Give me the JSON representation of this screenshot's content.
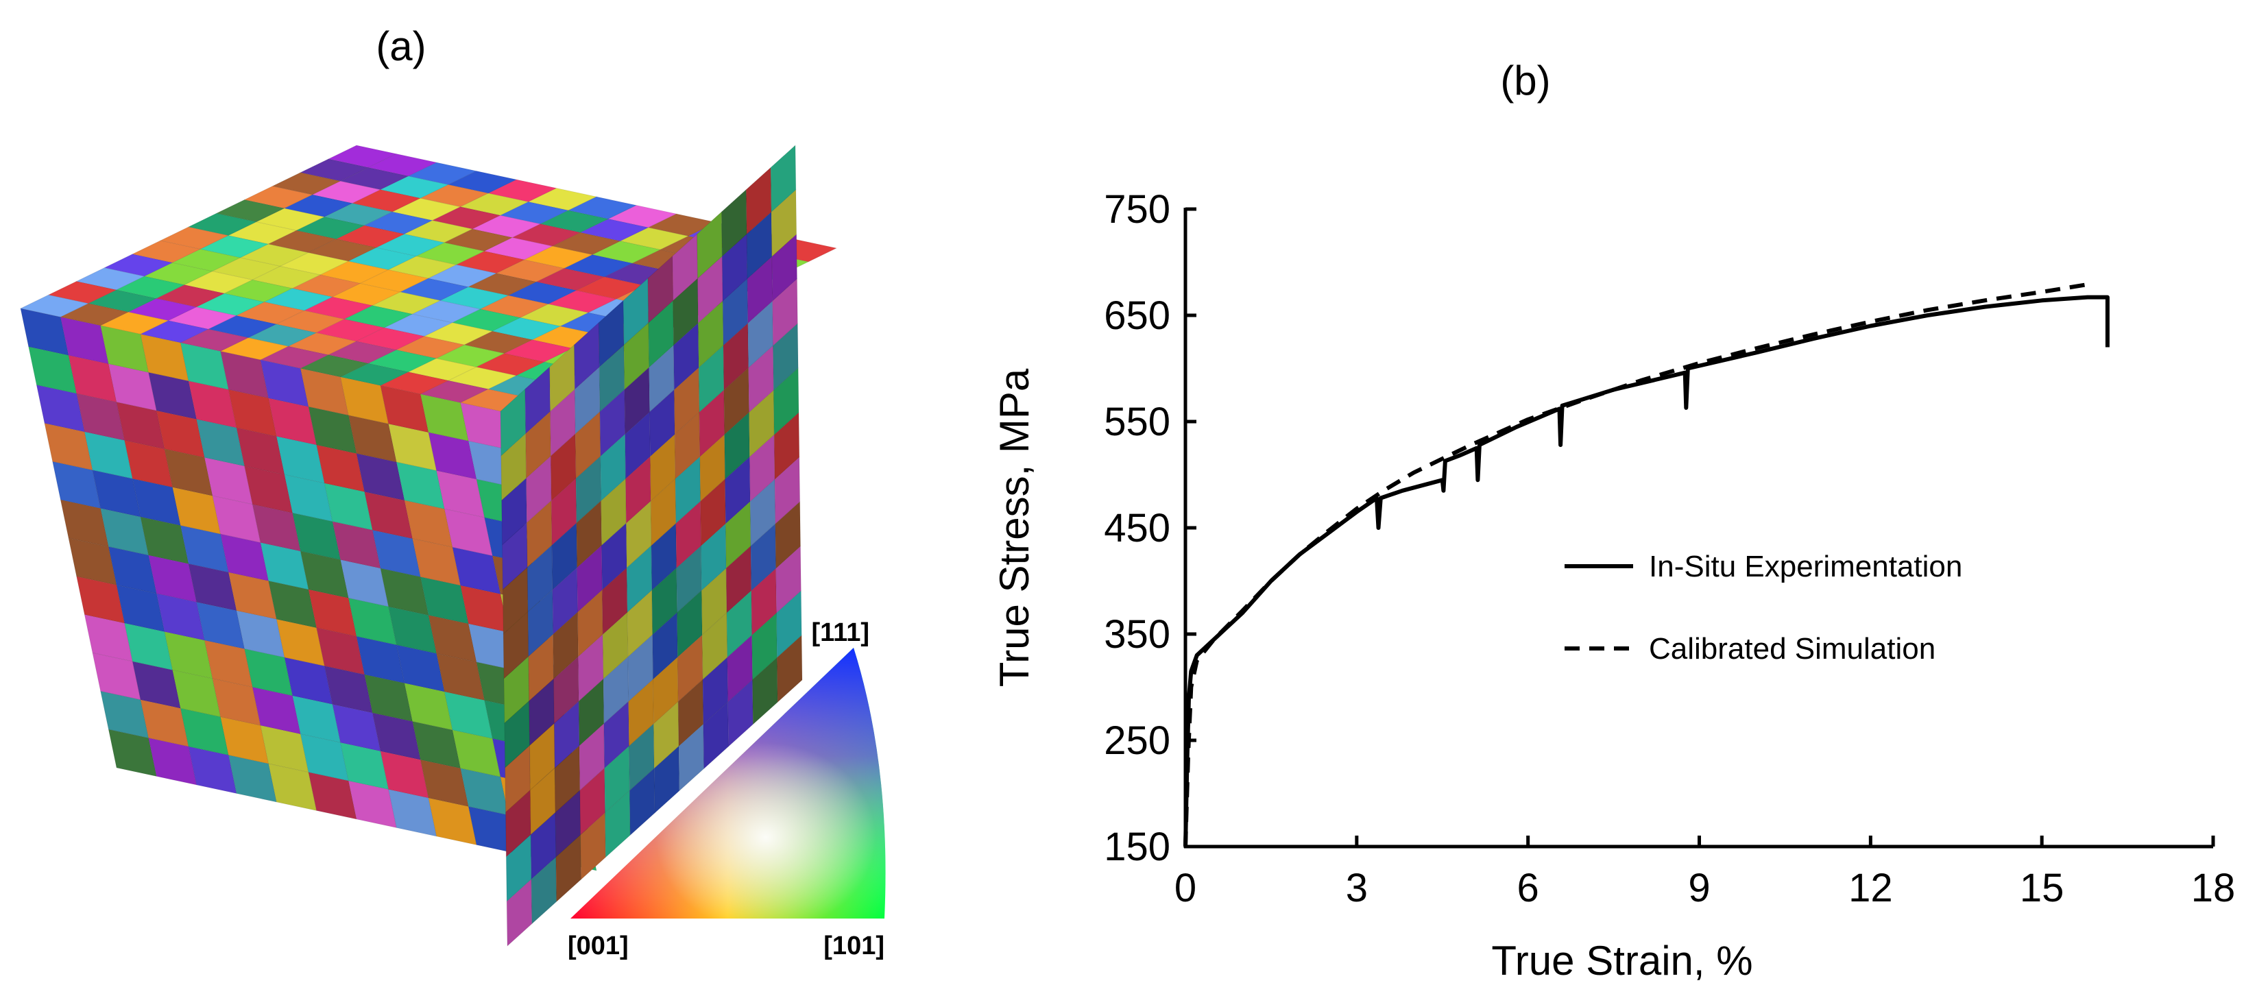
{
  "panels": {
    "a_label": "(a)",
    "b_label": "(b)"
  },
  "microstructure": {
    "grid": 12,
    "palette": [
      "#e8336b",
      "#4b3bd6",
      "#2a52c8",
      "#3ba0a8",
      "#1f9b6b",
      "#7fd13a",
      "#f0a020",
      "#d83a3a",
      "#9a2ad0",
      "#2fc4c4",
      "#c8d03a",
      "#e05ad0",
      "#3a6ad8",
      "#28c070",
      "#b03a80",
      "#70a0e8",
      "#e07a3a",
      "#5a30a0",
      "#30d0a0",
      "#a05a30",
      "#d8d840",
      "#408040",
      "#c03050",
      "#6040e0"
    ]
  },
  "ipf": {
    "label_001": "[001]",
    "label_101": "[101]",
    "label_111": "[111]"
  },
  "chart_data": {
    "type": "line",
    "title": "",
    "xlabel": "True Strain, %",
    "ylabel": "True Stress, MPa",
    "xlim": [
      0,
      18
    ],
    "ylim": [
      150,
      750
    ],
    "xticks": [
      0,
      3,
      6,
      9,
      12,
      15,
      18
    ],
    "yticks": [
      150,
      250,
      350,
      450,
      550,
      650,
      750
    ],
    "legend_position": "center-right",
    "series": [
      {
        "name": "In-Situ Experimentation",
        "style": "solid",
        "points": [
          [
            0.0,
            150
          ],
          [
            0.03,
            230
          ],
          [
            0.06,
            290
          ],
          [
            0.1,
            315
          ],
          [
            0.2,
            330
          ],
          [
            0.5,
            345
          ],
          [
            1.0,
            370
          ],
          [
            1.5,
            400
          ],
          [
            2.0,
            425
          ],
          [
            2.5,
            445
          ],
          [
            3.0,
            465
          ],
          [
            3.35,
            478
          ],
          [
            3.38,
            450
          ],
          [
            3.42,
            478
          ],
          [
            3.8,
            485
          ],
          [
            4.5,
            495
          ],
          [
            4.52,
            485
          ],
          [
            4.55,
            513
          ],
          [
            4.8,
            518
          ],
          [
            5.1,
            525
          ],
          [
            5.12,
            495
          ],
          [
            5.15,
            528
          ],
          [
            5.8,
            545
          ],
          [
            6.55,
            562
          ],
          [
            6.57,
            528
          ],
          [
            6.6,
            565
          ],
          [
            7.5,
            580
          ],
          [
            8.75,
            596
          ],
          [
            8.77,
            563
          ],
          [
            8.8,
            600
          ],
          [
            10,
            615
          ],
          [
            11,
            628
          ],
          [
            12,
            640
          ],
          [
            13,
            650
          ],
          [
            14,
            658
          ],
          [
            15,
            664
          ],
          [
            15.8,
            667
          ],
          [
            16.1,
            667
          ],
          [
            16.15,
            667
          ],
          [
            16.15,
            620
          ]
        ]
      },
      {
        "name": "Calibrated Simulation",
        "style": "dashed",
        "points": [
          [
            0.0,
            150
          ],
          [
            0.05,
            240
          ],
          [
            0.1,
            300
          ],
          [
            0.2,
            325
          ],
          [
            0.5,
            345
          ],
          [
            1.0,
            372
          ],
          [
            1.5,
            400
          ],
          [
            2.0,
            425
          ],
          [
            2.5,
            447
          ],
          [
            3.0,
            468
          ],
          [
            3.5,
            486
          ],
          [
            4.0,
            502
          ],
          [
            5.0,
            528
          ],
          [
            6.0,
            552
          ],
          [
            7.0,
            571
          ],
          [
            8.0,
            589
          ],
          [
            9.0,
            605
          ],
          [
            10.0,
            619
          ],
          [
            11.0,
            632
          ],
          [
            12.0,
            644
          ],
          [
            13.0,
            655
          ],
          [
            14.0,
            664
          ],
          [
            15.0,
            672
          ],
          [
            15.8,
            679
          ]
        ]
      }
    ]
  }
}
